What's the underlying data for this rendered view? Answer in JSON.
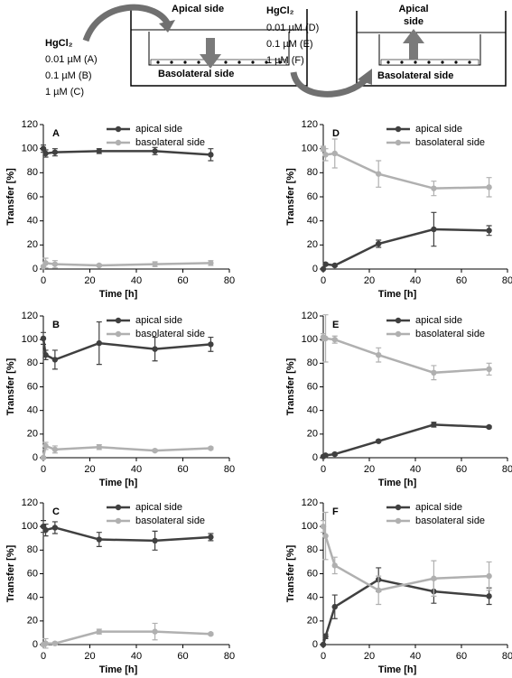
{
  "diagram": {
    "left": {
      "compound": "HgCl₂",
      "doses": [
        "0.01 µM (A)",
        "0.1 µM (B)",
        "1 µM (C)"
      ],
      "apical": [
        "Apical side"
      ],
      "basolateral": "Basolateral side"
    },
    "right": {
      "compound": "HgCl₂",
      "doses": [
        "0.01 µM (D)",
        "0.1 µM (E)",
        "1 µM (F)"
      ],
      "apical": [
        "Apical",
        "side"
      ],
      "basolateral": "Basolateral side"
    }
  },
  "chart_data": [
    {
      "type": "line",
      "title": "A",
      "xlabel": "Time [h]",
      "ylabel": "Transfer [%]",
      "x": [
        0,
        1,
        5,
        24,
        48,
        72
      ],
      "series": [
        {
          "name": "apical side",
          "color": "#404040",
          "values": [
            100,
            96,
            97,
            98,
            98,
            95
          ],
          "errors": [
            3,
            3,
            3,
            2,
            3,
            5
          ]
        },
        {
          "name": "basolateral side",
          "color": "#b0b0b0",
          "values": [
            2,
            5,
            4,
            3,
            4,
            5
          ],
          "errors": [
            1,
            4,
            3,
            1,
            2,
            2
          ]
        }
      ],
      "xlim": [
        0,
        80
      ],
      "xticks": [
        0,
        20,
        40,
        60,
        80
      ],
      "ylim": [
        0,
        120
      ],
      "yticks": [
        0,
        20,
        40,
        60,
        80,
        100,
        120
      ],
      "legend": "top"
    },
    {
      "type": "line",
      "title": "B",
      "xlabel": "Time [h]",
      "ylabel": "Transfer [%]",
      "x": [
        0,
        1,
        5,
        24,
        48,
        72
      ],
      "series": [
        {
          "name": "apical side",
          "color": "#404040",
          "values": [
            101,
            87,
            83,
            97,
            92,
            96
          ],
          "errors": [
            5,
            4,
            8,
            18,
            10,
            6
          ]
        },
        {
          "name": "basolateral side",
          "color": "#b0b0b0",
          "values": [
            0,
            10,
            7,
            9,
            6,
            8
          ],
          "errors": [
            1,
            3,
            3,
            2,
            1,
            1
          ]
        }
      ],
      "xlim": [
        0,
        80
      ],
      "xticks": [
        0,
        20,
        40,
        60,
        80
      ],
      "ylim": [
        0,
        120
      ],
      "yticks": [
        0,
        20,
        40,
        60,
        80,
        100,
        120
      ],
      "legend": "top"
    },
    {
      "type": "line",
      "title": "C",
      "xlabel": "Time [h]",
      "ylabel": "Transfer [%]",
      "x": [
        0,
        1,
        5,
        24,
        48,
        72
      ],
      "series": [
        {
          "name": "apical side",
          "color": "#404040",
          "values": [
            100,
            97,
            99,
            89,
            88,
            91
          ],
          "errors": [
            5,
            5,
            5,
            6,
            8,
            3
          ]
        },
        {
          "name": "basolateral side",
          "color": "#b0b0b0",
          "values": [
            0,
            1,
            1,
            11,
            11,
            9
          ],
          "errors": [
            1,
            4,
            1,
            2,
            7,
            1
          ]
        }
      ],
      "xlim": [
        0,
        80
      ],
      "xticks": [
        0,
        20,
        40,
        60,
        80
      ],
      "ylim": [
        0,
        120
      ],
      "yticks": [
        0,
        20,
        40,
        60,
        80,
        100,
        120
      ],
      "legend": "top"
    },
    {
      "type": "line",
      "title": "D",
      "xlabel": "Time [h]",
      "ylabel": "Transfer [%]",
      "x": [
        0,
        1,
        5,
        24,
        48,
        72
      ],
      "series": [
        {
          "name": "apical side",
          "color": "#404040",
          "values": [
            0,
            4,
            3,
            21,
            33,
            32
          ],
          "errors": [
            0,
            1,
            1,
            3,
            14,
            4
          ]
        },
        {
          "name": "basolateral side",
          "color": "#b0b0b0",
          "values": [
            100,
            95,
            96,
            79,
            67,
            68
          ],
          "errors": [
            2,
            5,
            12,
            11,
            6,
            8
          ]
        }
      ],
      "xlim": [
        0,
        80
      ],
      "xticks": [
        0,
        20,
        40,
        60,
        80
      ],
      "ylim": [
        0,
        120
      ],
      "yticks": [
        0,
        20,
        40,
        60,
        80,
        100,
        120
      ],
      "legend": "top"
    },
    {
      "type": "line",
      "title": "E",
      "xlabel": "Time [h]",
      "ylabel": "Transfer [%]",
      "x": [
        0,
        1,
        5,
        24,
        48,
        72
      ],
      "series": [
        {
          "name": "apical side",
          "color": "#404040",
          "values": [
            1,
            2,
            3,
            14,
            28,
            26
          ],
          "errors": [
            0,
            0,
            1,
            1,
            2,
            1
          ]
        },
        {
          "name": "basolateral side",
          "color": "#b0b0b0",
          "values": [
            102,
            101,
            100,
            87,
            72,
            75
          ],
          "errors": [
            3,
            20,
            3,
            6,
            6,
            5
          ]
        }
      ],
      "xlim": [
        0,
        80
      ],
      "xticks": [
        0,
        20,
        40,
        60,
        80
      ],
      "ylim": [
        0,
        120
      ],
      "yticks": [
        0,
        20,
        40,
        60,
        80,
        100,
        120
      ],
      "legend": "top"
    },
    {
      "type": "line",
      "title": "F",
      "xlabel": "Time [h]",
      "ylabel": "Transfer [%]",
      "x": [
        0,
        1,
        5,
        24,
        48,
        72
      ],
      "series": [
        {
          "name": "apical side",
          "color": "#404040",
          "values": [
            0,
            7,
            32,
            55,
            45,
            41
          ],
          "errors": [
            0,
            2,
            10,
            10,
            10,
            7
          ]
        },
        {
          "name": "basolateral side",
          "color": "#b0b0b0",
          "values": [
            100,
            92,
            67,
            46,
            56,
            58
          ],
          "errors": [
            5,
            20,
            7,
            12,
            15,
            12
          ]
        }
      ],
      "xlim": [
        0,
        80
      ],
      "xticks": [
        0,
        20,
        40,
        60,
        80
      ],
      "ylim": [
        0,
        120
      ],
      "yticks": [
        0,
        20,
        40,
        60,
        80,
        100,
        120
      ],
      "legend": "top"
    }
  ]
}
